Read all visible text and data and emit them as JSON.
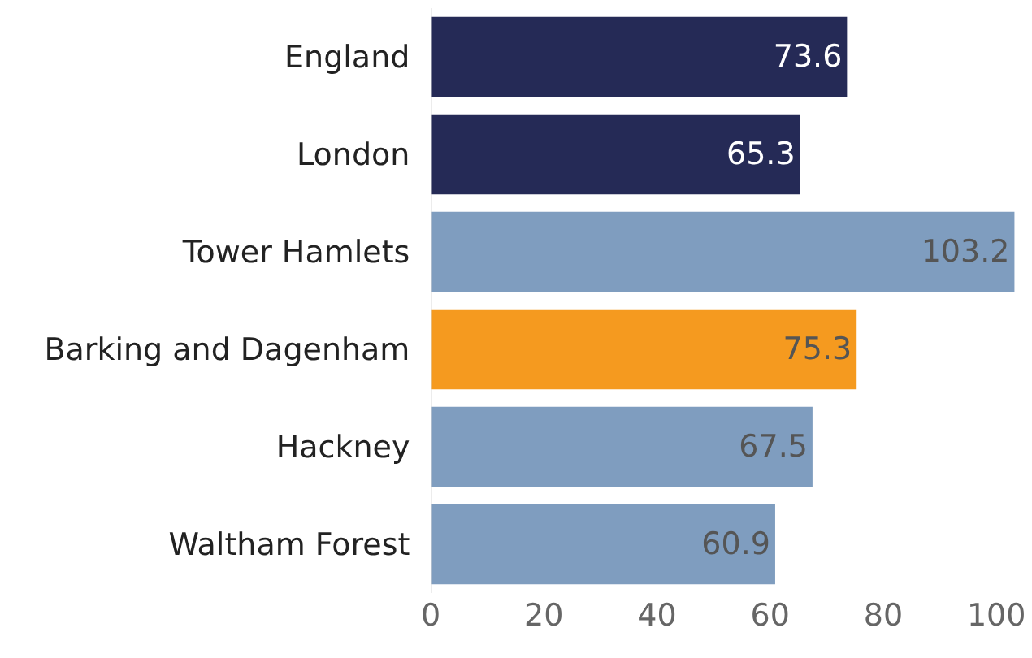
{
  "chart_data": {
    "type": "bar",
    "orientation": "horizontal",
    "categories": [
      "England",
      "London",
      "Tower Hamlets",
      "Barking and Dagenham",
      "Hackney",
      "Waltham Forest"
    ],
    "values": [
      73.6,
      65.3,
      103.2,
      75.3,
      67.5,
      60.9
    ],
    "colors": [
      "#252a56",
      "#252a56",
      "#7f9dbf",
      "#f59a1f",
      "#7f9dbf",
      "#7f9dbf"
    ],
    "xlim": [
      0,
      104
    ],
    "xticks": [
      0,
      20,
      40,
      60,
      80,
      100
    ],
    "data_labels": true
  }
}
